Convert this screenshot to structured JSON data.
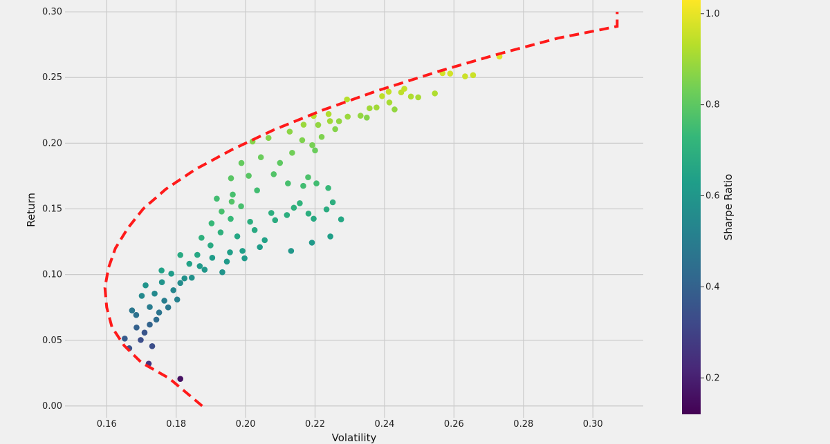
{
  "chart_data": {
    "type": "scatter",
    "title": "",
    "xlabel": "Volatility",
    "ylabel": "Return",
    "colorbar_label": "Sharpe Ratio",
    "xlim": [
      0.148,
      0.3145
    ],
    "ylim": [
      -0.009,
      0.309
    ],
    "x_ticks": [
      0.16,
      0.18,
      0.2,
      0.22,
      0.24,
      0.26,
      0.28,
      0.3
    ],
    "x_tick_labels": [
      "0.16",
      "0.18",
      "0.20",
      "0.22",
      "0.24",
      "0.26",
      "0.28",
      "0.30"
    ],
    "y_ticks": [
      0.0,
      0.05,
      0.1,
      0.15,
      0.2,
      0.25,
      0.3
    ],
    "y_tick_labels": [
      "0.00",
      "0.05",
      "0.10",
      "0.15",
      "0.20",
      "0.25",
      "0.30"
    ],
    "colorbar_range": [
      0.12,
      1.03
    ],
    "colorbar_ticks": [
      0.2,
      0.4,
      0.6,
      0.8,
      1.0
    ],
    "colorbar_tick_labels": [
      "0.2",
      "0.4",
      "0.6",
      "0.8",
      "1.0"
    ],
    "colormap": "viridis",
    "grid": true,
    "frontier_color": "#ff1a1a",
    "frontier_style": "dashed",
    "efficient_frontier": [
      [
        0.1875,
        0.0
      ],
      [
        0.178,
        0.021
      ],
      [
        0.17,
        0.033
      ],
      [
        0.165,
        0.046
      ],
      [
        0.1615,
        0.06
      ],
      [
        0.16,
        0.075
      ],
      [
        0.1595,
        0.09
      ],
      [
        0.1605,
        0.105
      ],
      [
        0.1625,
        0.12
      ],
      [
        0.166,
        0.135
      ],
      [
        0.1705,
        0.15
      ],
      [
        0.177,
        0.165
      ],
      [
        0.1855,
        0.18
      ],
      [
        0.196,
        0.195
      ],
      [
        0.208,
        0.21
      ],
      [
        0.222,
        0.225
      ],
      [
        0.238,
        0.24
      ],
      [
        0.256,
        0.255
      ],
      [
        0.273,
        0.268
      ],
      [
        0.29,
        0.28
      ],
      [
        0.3025,
        0.2865
      ],
      [
        0.307,
        0.289
      ],
      [
        0.307,
        0.3
      ]
    ],
    "portfolios": [
      [
        0.1812,
        0.0206,
        0.16
      ],
      [
        0.1721,
        0.0322,
        0.26
      ],
      [
        0.1731,
        0.0455,
        0.34
      ],
      [
        0.1665,
        0.0439,
        0.35
      ],
      [
        0.1652,
        0.0513,
        0.38
      ],
      [
        0.1698,
        0.0502,
        0.34
      ],
      [
        0.1709,
        0.0558,
        0.36
      ],
      [
        0.1686,
        0.0597,
        0.4
      ],
      [
        0.1724,
        0.0619,
        0.41
      ],
      [
        0.1743,
        0.0657,
        0.44
      ],
      [
        0.1751,
        0.0711,
        0.47
      ],
      [
        0.1777,
        0.075,
        0.48
      ],
      [
        0.1766,
        0.0801,
        0.51
      ],
      [
        0.1803,
        0.081,
        0.52
      ],
      [
        0.1792,
        0.0881,
        0.54
      ],
      [
        0.1812,
        0.0936,
        0.56
      ],
      [
        0.1824,
        0.0971,
        0.58
      ],
      [
        0.1845,
        0.0976,
        0.58
      ],
      [
        0.1882,
        0.1037,
        0.6
      ],
      [
        0.1868,
        0.1064,
        0.61
      ],
      [
        0.1933,
        0.1018,
        0.59
      ],
      [
        0.1904,
        0.1128,
        0.62
      ],
      [
        0.1946,
        0.1099,
        0.61
      ],
      [
        0.1955,
        0.1169,
        0.63
      ],
      [
        0.1997,
        0.1124,
        0.61
      ],
      [
        0.1991,
        0.118,
        0.63
      ],
      [
        0.2131,
        0.118,
        0.6
      ],
      [
        0.2191,
        0.1243,
        0.61
      ],
      [
        0.2041,
        0.1209,
        0.62
      ],
      [
        0.2055,
        0.1262,
        0.64
      ],
      [
        0.1976,
        0.1291,
        0.66
      ],
      [
        0.2026,
        0.1339,
        0.67
      ],
      [
        0.2013,
        0.1402,
        0.69
      ],
      [
        0.2085,
        0.1414,
        0.68
      ],
      [
        0.2119,
        0.1453,
        0.69
      ],
      [
        0.2074,
        0.1469,
        0.69
      ],
      [
        0.2181,
        0.1464,
        0.69
      ],
      [
        0.2139,
        0.1509,
        0.7
      ],
      [
        0.2156,
        0.1543,
        0.71
      ],
      [
        0.2244,
        0.129,
        0.63
      ],
      [
        0.2275,
        0.142,
        0.66
      ],
      [
        0.2233,
        0.1496,
        0.68
      ],
      [
        0.2196,
        0.1425,
        0.67
      ],
      [
        0.2251,
        0.155,
        0.69
      ],
      [
        0.2238,
        0.1659,
        0.73
      ],
      [
        0.2204,
        0.1694,
        0.75
      ],
      [
        0.2166,
        0.1675,
        0.75
      ],
      [
        0.218,
        0.1741,
        0.77
      ],
      [
        0.2122,
        0.1694,
        0.76
      ],
      [
        0.2081,
        0.1764,
        0.78
      ],
      [
        0.2033,
        0.1641,
        0.75
      ],
      [
        0.2009,
        0.1752,
        0.79
      ],
      [
        0.1963,
        0.1609,
        0.76
      ],
      [
        0.1917,
        0.1578,
        0.75
      ],
      [
        0.1958,
        0.1733,
        0.79
      ],
      [
        0.1988,
        0.1849,
        0.81
      ],
      [
        0.2044,
        0.1893,
        0.82
      ],
      [
        0.2099,
        0.185,
        0.8
      ],
      [
        0.2134,
        0.1927,
        0.83
      ],
      [
        0.22,
        0.1945,
        0.82
      ],
      [
        0.2163,
        0.2023,
        0.85
      ],
      [
        0.2219,
        0.2048,
        0.85
      ],
      [
        0.2192,
        0.1985,
        0.84
      ],
      [
        0.2127,
        0.2088,
        0.87
      ],
      [
        0.2066,
        0.204,
        0.86
      ],
      [
        0.202,
        0.2013,
        0.86
      ],
      [
        0.2167,
        0.2141,
        0.89
      ],
      [
        0.2209,
        0.2139,
        0.88
      ],
      [
        0.2258,
        0.2107,
        0.86
      ],
      [
        0.2269,
        0.2167,
        0.88
      ],
      [
        0.2294,
        0.2202,
        0.89
      ],
      [
        0.2331,
        0.2209,
        0.88
      ],
      [
        0.2357,
        0.2266,
        0.9
      ],
      [
        0.2377,
        0.2272,
        0.9
      ],
      [
        0.2414,
        0.231,
        0.91
      ],
      [
        0.2429,
        0.2257,
        0.88
      ],
      [
        0.2393,
        0.2358,
        0.94
      ],
      [
        0.2448,
        0.2387,
        0.94
      ],
      [
        0.2476,
        0.2355,
        0.92
      ],
      [
        0.2457,
        0.2414,
        0.95
      ],
      [
        0.2497,
        0.2349,
        0.91
      ],
      [
        0.2412,
        0.2392,
        0.95
      ],
      [
        0.2349,
        0.2195,
        0.86
      ],
      [
        0.2292,
        0.2333,
        0.93
      ],
      [
        0.2545,
        0.2379,
        0.92
      ],
      [
        0.2567,
        0.2533,
        0.97
      ],
      [
        0.2589,
        0.253,
        0.97
      ],
      [
        0.2632,
        0.2509,
        0.96
      ],
      [
        0.2655,
        0.2518,
        0.96
      ],
      [
        0.2731,
        0.266,
        0.99
      ],
      [
        0.2239,
        0.2222,
        0.92
      ],
      [
        0.2196,
        0.2207,
        0.93
      ],
      [
        0.2243,
        0.2168,
        0.9
      ],
      [
        0.1724,
        0.0753,
        0.5
      ],
      [
        0.1701,
        0.0838,
        0.55
      ],
      [
        0.1685,
        0.0692,
        0.46
      ],
      [
        0.1673,
        0.0727,
        0.48
      ],
      [
        0.1738,
        0.0855,
        0.55
      ],
      [
        0.1712,
        0.0918,
        0.59
      ],
      [
        0.1759,
        0.0942,
        0.59
      ],
      [
        0.1786,
        0.1007,
        0.62
      ],
      [
        0.1758,
        0.1031,
        0.64
      ],
      [
        0.1838,
        0.1082,
        0.64
      ],
      [
        0.1861,
        0.115,
        0.66
      ],
      [
        0.1812,
        0.1149,
        0.67
      ],
      [
        0.1899,
        0.1222,
        0.67
      ],
      [
        0.1873,
        0.128,
        0.7
      ],
      [
        0.1928,
        0.1321,
        0.7
      ],
      [
        0.1902,
        0.139,
        0.73
      ],
      [
        0.1957,
        0.1424,
        0.73
      ],
      [
        0.1931,
        0.148,
        0.76
      ],
      [
        0.1987,
        0.152,
        0.76
      ],
      [
        0.196,
        0.1555,
        0.78
      ]
    ]
  }
}
